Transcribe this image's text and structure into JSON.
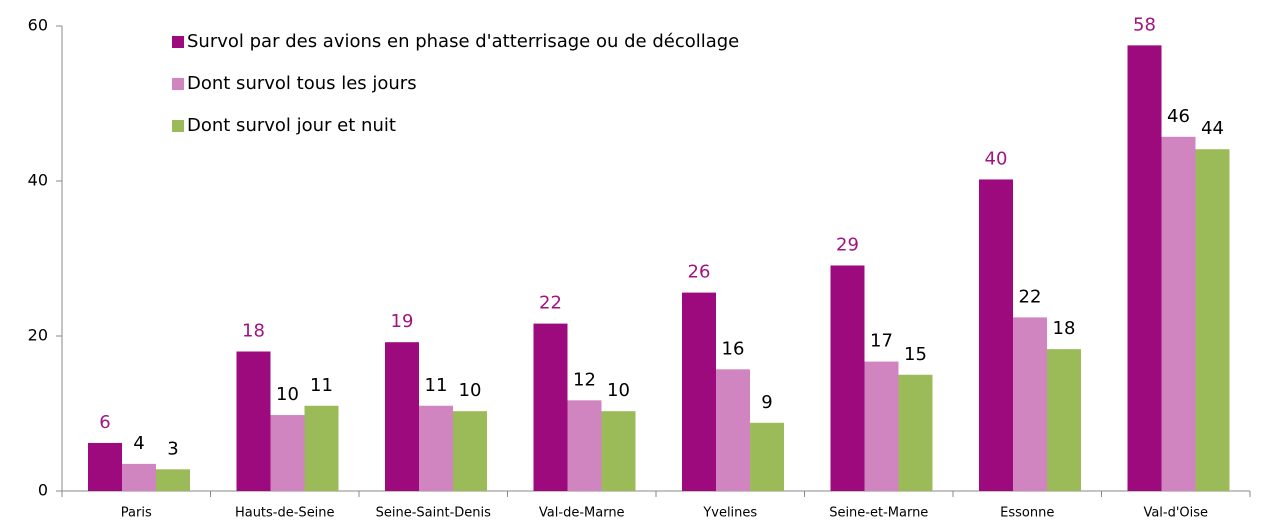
{
  "chart_data": {
    "type": "bar",
    "categories": [
      "Paris",
      "Hauts-de-Seine",
      "Seine-Saint-Denis",
      "Val-de-Marne",
      "Yvelines",
      "Seine-et-Marne",
      "Essonne",
      "Val-d'Oise"
    ],
    "series": [
      {
        "name": "Survol par des avions en phase d'atterrisage ou de décollage",
        "color": "#9c0a7d",
        "label_color": "#a3137f",
        "values": [
          6.2,
          18.0,
          19.2,
          21.6,
          25.6,
          29.1,
          40.2,
          57.5
        ],
        "value_labels": [
          "6",
          "18",
          "19",
          "22",
          "26",
          "29",
          "40",
          "58"
        ]
      },
      {
        "name": "Dont survol tous les jours",
        "color": "#d084c0",
        "label_color": "#000000",
        "values": [
          3.5,
          9.8,
          11.0,
          11.7,
          15.7,
          16.7,
          22.4,
          45.7
        ],
        "value_labels": [
          "4",
          "10",
          "11",
          "12",
          "16",
          "17",
          "22",
          "46"
        ]
      },
      {
        "name": "Dont survol jour et nuit",
        "color": "#9bbb59",
        "label_color": "#000000",
        "values": [
          2.8,
          11.0,
          10.3,
          10.3,
          8.8,
          15.0,
          18.3,
          44.1
        ],
        "value_labels": [
          "3",
          "11",
          "10",
          "10",
          "9",
          "15",
          "18",
          "44"
        ]
      }
    ],
    "ylim": [
      0,
      60
    ],
    "yticks": [
      0,
      20,
      40,
      60
    ],
    "grid": false
  }
}
